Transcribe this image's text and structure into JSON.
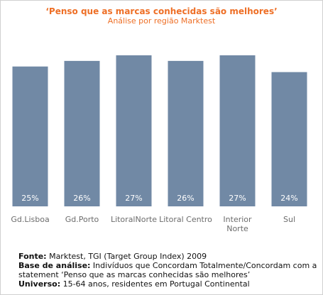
{
  "chart_data": {
    "type": "bar",
    "title": "‘Penso que as marcas conhecidas são melhores’",
    "subtitle": "Análise por região Marktest",
    "categories": [
      "Gd.Lisboa",
      "Gd.Porto",
      "LitoralNorte",
      "Litoral Centro",
      "Interior Norte",
      "Sul"
    ],
    "category_lines": [
      [
        "Gd.Lisboa"
      ],
      [
        "Gd.Porto"
      ],
      [
        "LitoralNorte"
      ],
      [
        "Litoral Centro"
      ],
      [
        "Interior",
        "Norte"
      ],
      [
        "Sul"
      ]
    ],
    "values": [
      25,
      26,
      27,
      26,
      27,
      24
    ],
    "value_labels": [
      "25%",
      "26%",
      "27%",
      "26%",
      "27%",
      "24%"
    ],
    "unit": "%",
    "ylim": [
      0,
      27
    ],
    "grid": false,
    "colors": {
      "bar": "#7189a5",
      "value_label": "#ffffff",
      "title": "#ee6f26",
      "category_label": "#6c6c6c"
    }
  },
  "notes": {
    "fonte_label": "Fonte:",
    "fonte_text": " Marktest, TGI (Target Group Index) 2009",
    "base_label": "Base de análise:",
    "base_text": "  Indivíduos que Concordam Totalmente/Concordam com a",
    "base_text2": "statement ‘Penso que as marcas conhecidas são melhores’",
    "universo_label": "Universo:",
    "universo_text": " 15-64 anos, residentes em Portugal Continental"
  }
}
